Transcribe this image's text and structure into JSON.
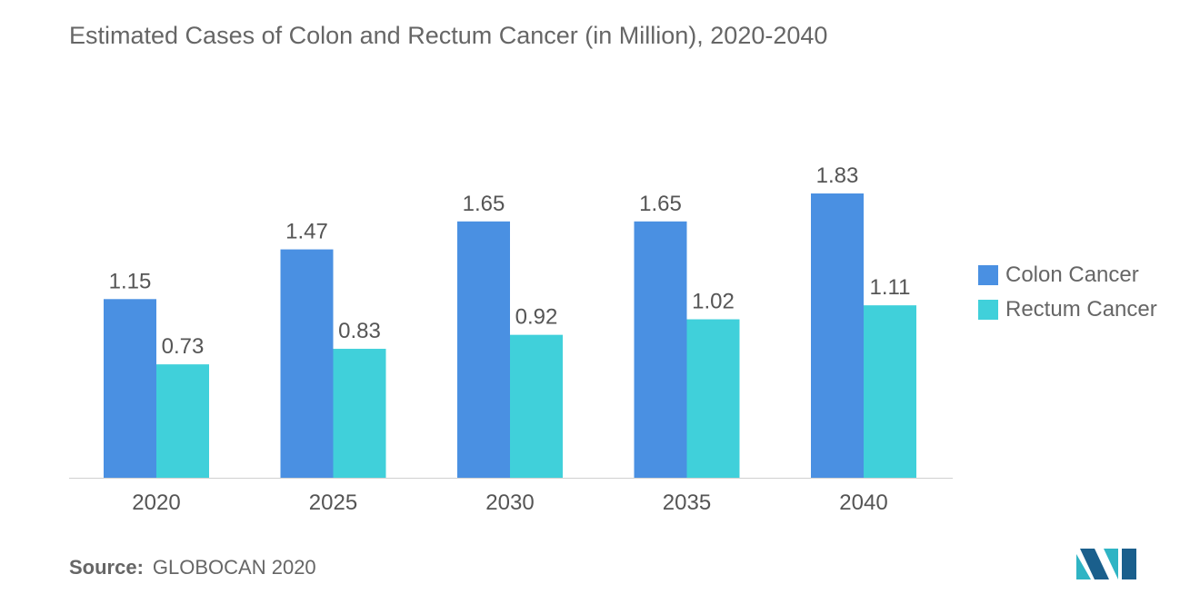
{
  "title": "Estimated Cases of Colon and Rectum Cancer (in Million), 2020-2040",
  "source": {
    "label": "Source:",
    "text": "GLOBOCAN 2020"
  },
  "colors": {
    "colon": "#4a90e2",
    "rectum": "#40d0da",
    "axis": "#d0d0d0",
    "text": "#555555"
  },
  "chart_data": {
    "type": "bar",
    "title": "Estimated Cases of Colon and Rectum Cancer (in Million), 2020-2040",
    "categories": [
      "2020",
      "2025",
      "2030",
      "2035",
      "2040"
    ],
    "series": [
      {
        "name": "Colon Cancer",
        "values": [
          1.15,
          1.47,
          1.65,
          1.65,
          1.83
        ],
        "labels": [
          "1.15",
          "1.47",
          "1.65",
          "1.65",
          "1.83"
        ]
      },
      {
        "name": "Rectum Cancer",
        "values": [
          0.73,
          0.83,
          0.92,
          1.02,
          1.11
        ],
        "labels": [
          "0.73",
          "0.83",
          "0.92",
          "1.02",
          "1.11"
        ]
      }
    ],
    "ylim": [
      0,
      1.83
    ],
    "grid": false,
    "legend": "right"
  }
}
